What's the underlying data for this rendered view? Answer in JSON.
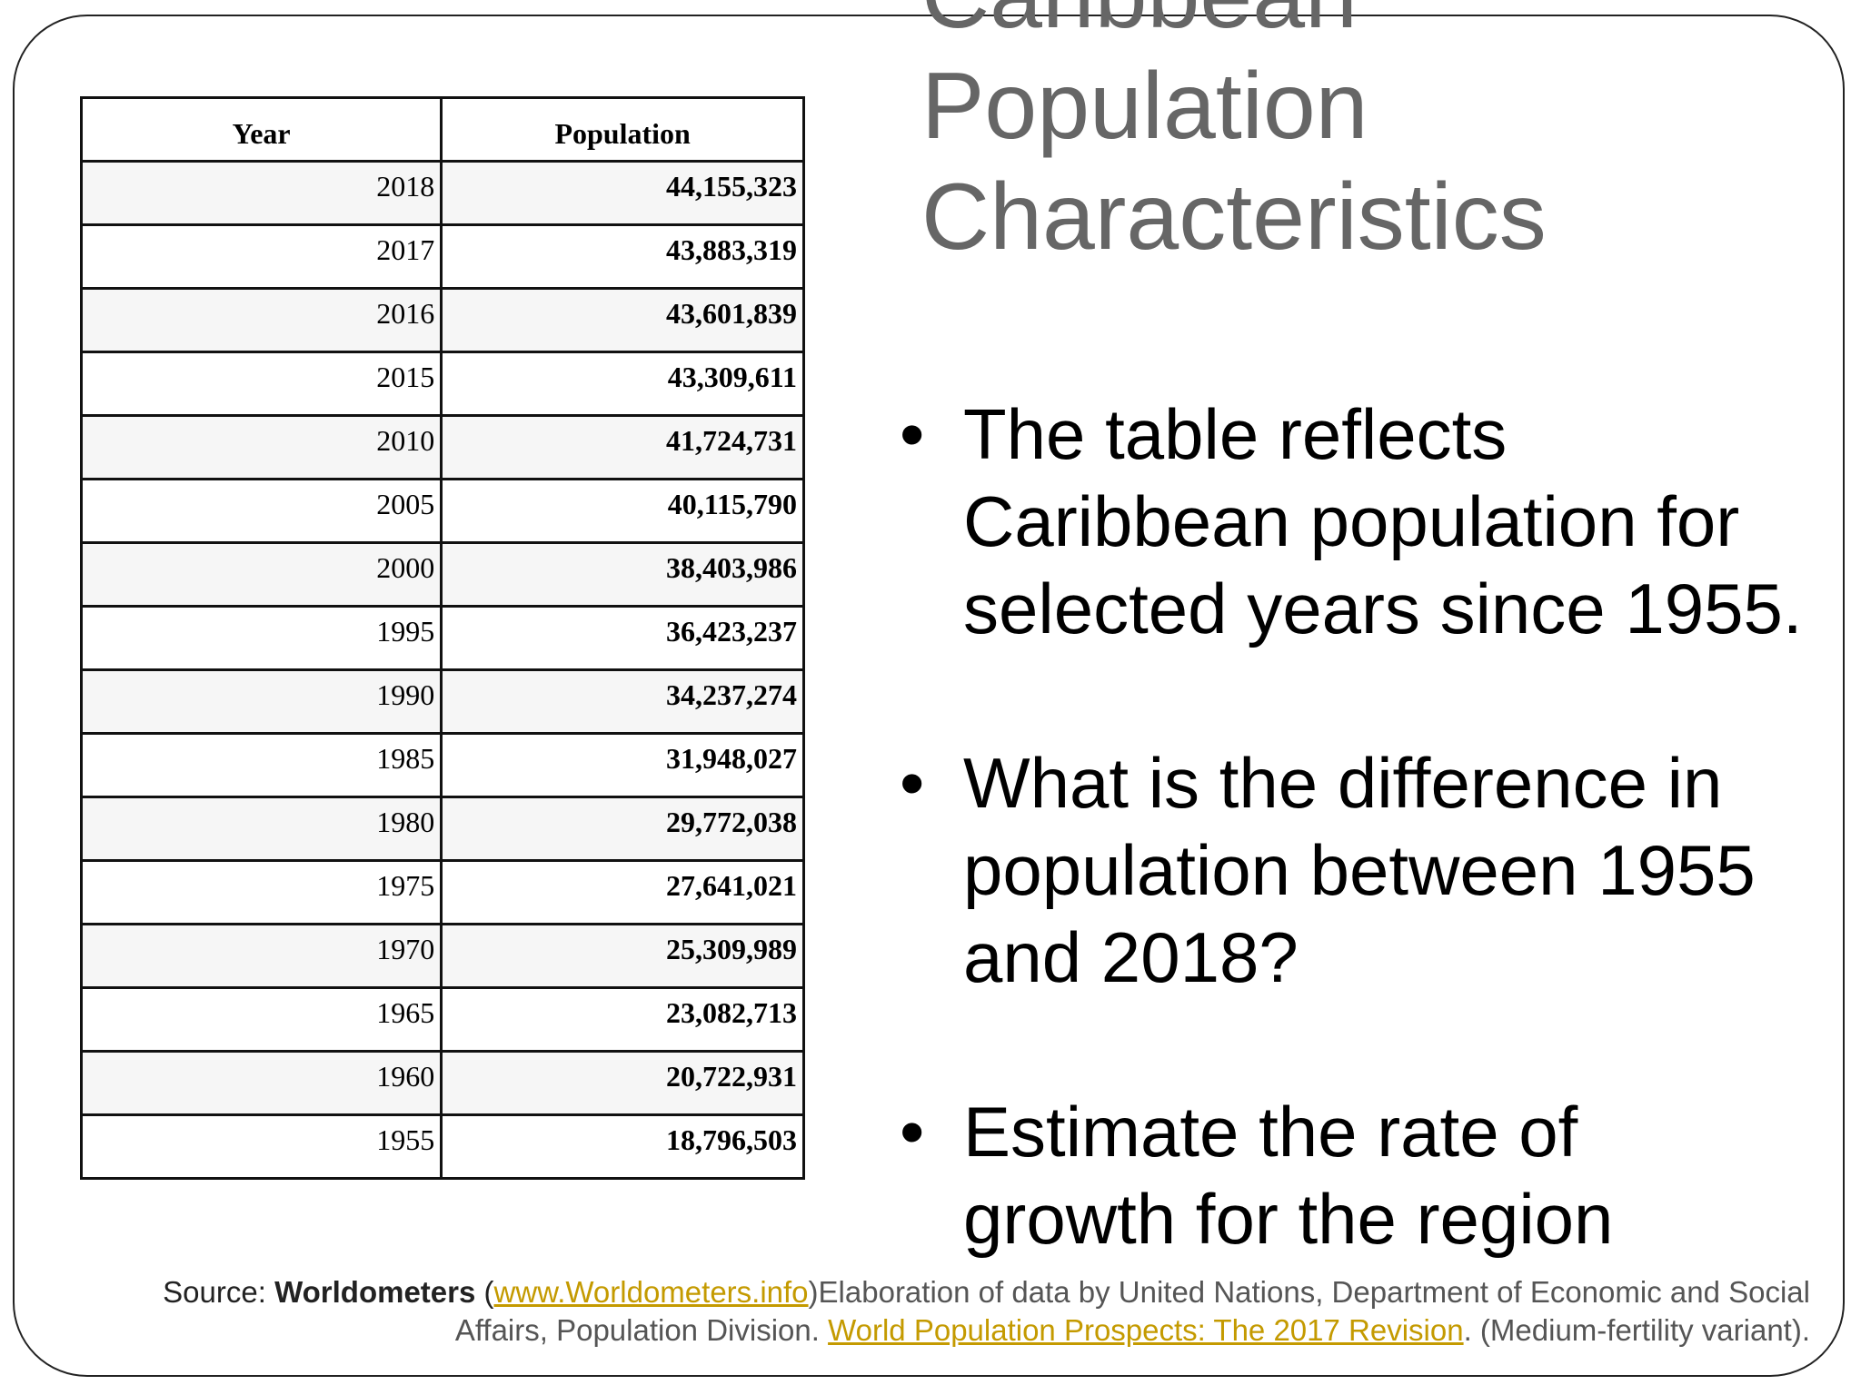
{
  "slide": {
    "title_lines": [
      "Caribbean",
      "Population",
      "Characteristics"
    ],
    "table": {
      "headers": {
        "year": "Year",
        "population": "Population"
      },
      "rows": [
        {
          "year": "2018",
          "population": "44,155,323"
        },
        {
          "year": "2017",
          "population": "43,883,319"
        },
        {
          "year": "2016",
          "population": "43,601,839"
        },
        {
          "year": "2015",
          "population": "43,309,611"
        },
        {
          "year": "2010",
          "population": "41,724,731"
        },
        {
          "year": "2005",
          "population": "40,115,790"
        },
        {
          "year": "2000",
          "population": "38,403,986"
        },
        {
          "year": "1995",
          "population": "36,423,237"
        },
        {
          "year": "1990",
          "population": "34,237,274"
        },
        {
          "year": "1985",
          "population": "31,948,027"
        },
        {
          "year": "1980",
          "population": "29,772,038"
        },
        {
          "year": "1975",
          "population": "27,641,021"
        },
        {
          "year": "1970",
          "population": "25,309,989"
        },
        {
          "year": "1965",
          "population": "23,082,713"
        },
        {
          "year": "1960",
          "population": "20,722,931"
        },
        {
          "year": "1955",
          "population": "18,796,503"
        }
      ]
    },
    "bullet_mark": "•",
    "bullets": [
      "The table reflects Caribbean population for selected years since 1955.",
      "What is the difference in population between 1955 and 2018?",
      "Estimate the rate of growth for the region"
    ],
    "source": {
      "label": "Source: ",
      "org": "Worldometers",
      "open_paren": " (",
      "link1": "www.Worldometers.info",
      "after_link1": ")Elaboration of data by United Nations, Department of Economic and Social",
      "line2_prefix": "Affairs, Population Division. ",
      "link2": "World Population Prospects: The 2017 Revision",
      "line2_suffix": ". (Medium-fertility variant)."
    }
  }
}
